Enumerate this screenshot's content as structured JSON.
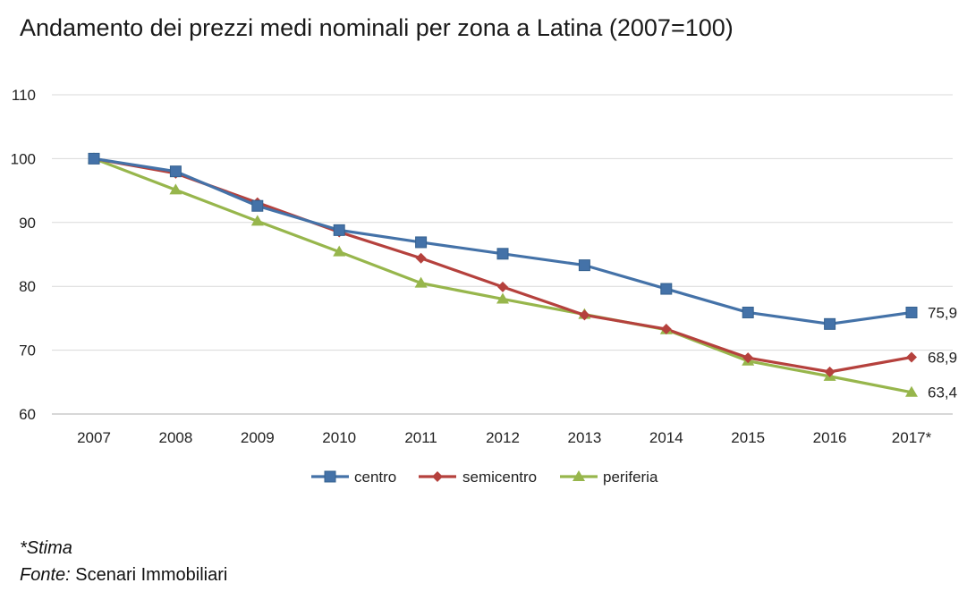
{
  "chart_data": {
    "type": "line",
    "title": "Andamento dei prezzi medi nominali per zona a Latina (2007=100)",
    "xlabel": "",
    "ylabel": "",
    "categories": [
      "2007",
      "2008",
      "2009",
      "2010",
      "2011",
      "2012",
      "2013",
      "2014",
      "2015",
      "2016",
      "2017*"
    ],
    "ylim": [
      60,
      110
    ],
    "yticks": [
      "60",
      "70",
      "80",
      "90",
      "100",
      "110"
    ],
    "grid": true,
    "legend_position": "bottom",
    "series": [
      {
        "name": "centro",
        "color": "#4472A8",
        "marker": "square",
        "values": [
          100,
          98,
          92.6,
          88.8,
          86.9,
          85.1,
          83.3,
          79.6,
          75.9,
          74.1,
          75.9
        ],
        "end_label": "75,9"
      },
      {
        "name": "semicentro",
        "color": "#B5413D",
        "marker": "diamond",
        "values": [
          100,
          97.7,
          93.1,
          88.5,
          84.4,
          79.9,
          75.5,
          73.3,
          68.8,
          66.6,
          68.9
        ],
        "end_label": "68,9"
      },
      {
        "name": "periferia",
        "color": "#97B64C",
        "marker": "triangle",
        "values": [
          100,
          95.1,
          90.2,
          85.4,
          80.5,
          78,
          75.6,
          73.2,
          68.3,
          65.9,
          63.4
        ],
        "end_label": "63,4"
      }
    ]
  },
  "footnote": {
    "stima": "*Stima",
    "fonte_label": "Fonte:",
    "fonte_value": " Scenari Immobiliari"
  }
}
